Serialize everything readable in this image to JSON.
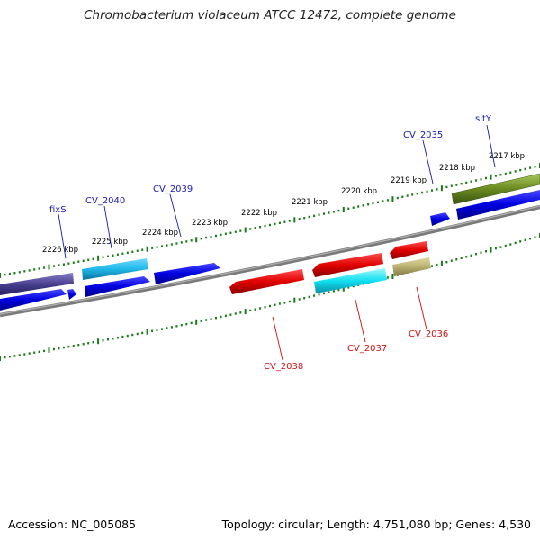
{
  "title": "Chromobacterium violaceum ATCC 12472, complete genome",
  "accession": "Accession: NC_005085",
  "summary": "Topology: circular; Length: 4,751,080 bp; Genes: 4,530",
  "scale": {
    "unit": "kbp",
    "ticks": [
      {
        "kbp": 2217,
        "label": "2217 kbp"
      },
      {
        "kbp": 2218,
        "label": "2218 kbp"
      },
      {
        "kbp": 2219,
        "label": "2219 kbp"
      },
      {
        "kbp": 2220,
        "label": "2220 kbp"
      },
      {
        "kbp": 2221,
        "label": "2221 kbp"
      },
      {
        "kbp": 2222,
        "label": "2222 kbp"
      },
      {
        "kbp": 2223,
        "label": "2223 kbp"
      },
      {
        "kbp": 2224,
        "label": "2224 kbp"
      },
      {
        "kbp": 2225,
        "label": "2225 kbp"
      },
      {
        "kbp": 2226,
        "label": "2226 kbp"
      }
    ]
  },
  "colors": {
    "forward_cds": "#0000e0",
    "reverse_cds": "#e00000",
    "cyan_feature": "#10d8e8",
    "olive_feature": "#6a8a20",
    "khaki_feature": "#b8b070",
    "navy_feature": "#4a4090",
    "backbone": "#888888",
    "tick": "#1a7a1a",
    "forward_label": "#1a1ab0",
    "reverse_label": "#cc1111"
  },
  "genes": [
    {
      "name": "sltY",
      "strand": "forward"
    },
    {
      "name": "CV_2035",
      "strand": "forward"
    },
    {
      "name": "CV_2039",
      "strand": "forward"
    },
    {
      "name": "CV_2040",
      "strand": "forward"
    },
    {
      "name": "fixS",
      "strand": "forward"
    },
    {
      "name": "CV_2036",
      "strand": "reverse"
    },
    {
      "name": "CV_2037",
      "strand": "reverse"
    },
    {
      "name": "CV_2038",
      "strand": "reverse"
    }
  ]
}
